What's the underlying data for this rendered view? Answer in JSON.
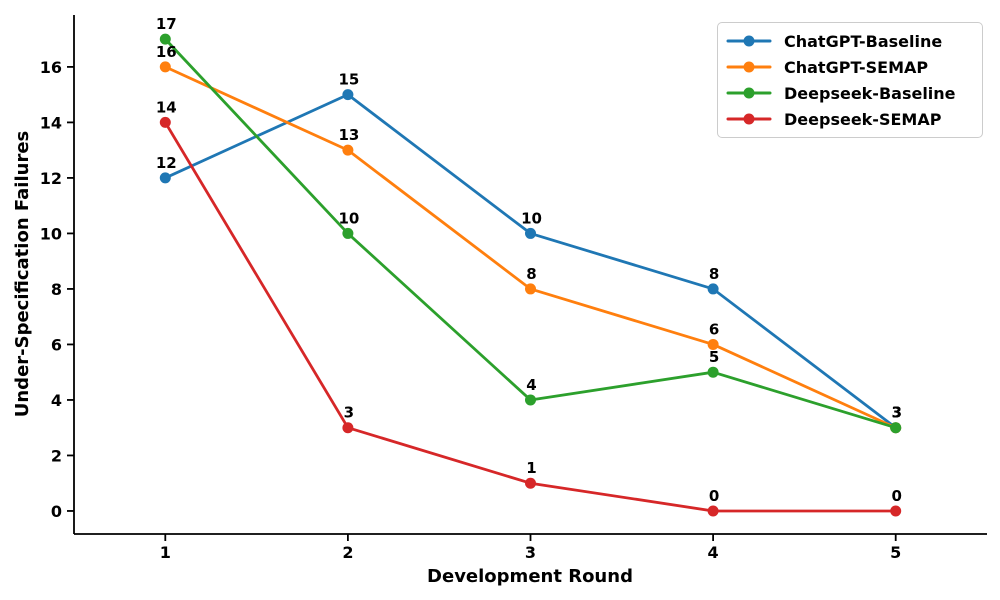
{
  "chart_data": {
    "type": "line",
    "title": "",
    "xlabel": "Development Round",
    "ylabel": "Under-Specification Failures",
    "x": [
      1,
      2,
      3,
      4,
      5
    ],
    "xtick_labels": [
      "1",
      "2",
      "3",
      "4",
      "5"
    ],
    "ytick_values": [
      0,
      2,
      4,
      6,
      8,
      10,
      12,
      14,
      16
    ],
    "ytick_labels": [
      "0",
      "2",
      "4",
      "6",
      "8",
      "10",
      "12",
      "14",
      "16"
    ],
    "xlim": [
      0.5,
      5.5
    ],
    "ylim": [
      -0.83,
      17.87
    ],
    "grid": false,
    "legend_position": "upper right",
    "point_labels_shown": true,
    "series": [
      {
        "name": "ChatGPT-Baseline",
        "color": "#1f77b4",
        "values": [
          12,
          15,
          10,
          8,
          3
        ]
      },
      {
        "name": "ChatGPT-SEMAP",
        "color": "#ff7f0e",
        "values": [
          16,
          13,
          8,
          6,
          3
        ]
      },
      {
        "name": "Deepseek-Baseline",
        "color": "#2ca02c",
        "values": [
          17,
          10,
          4,
          5,
          3
        ]
      },
      {
        "name": "Deepseek-SEMAP",
        "color": "#d62728",
        "values": [
          14,
          3,
          1,
          0,
          0
        ]
      }
    ],
    "axis_color": "#000000",
    "background_color": "#ffffff"
  }
}
